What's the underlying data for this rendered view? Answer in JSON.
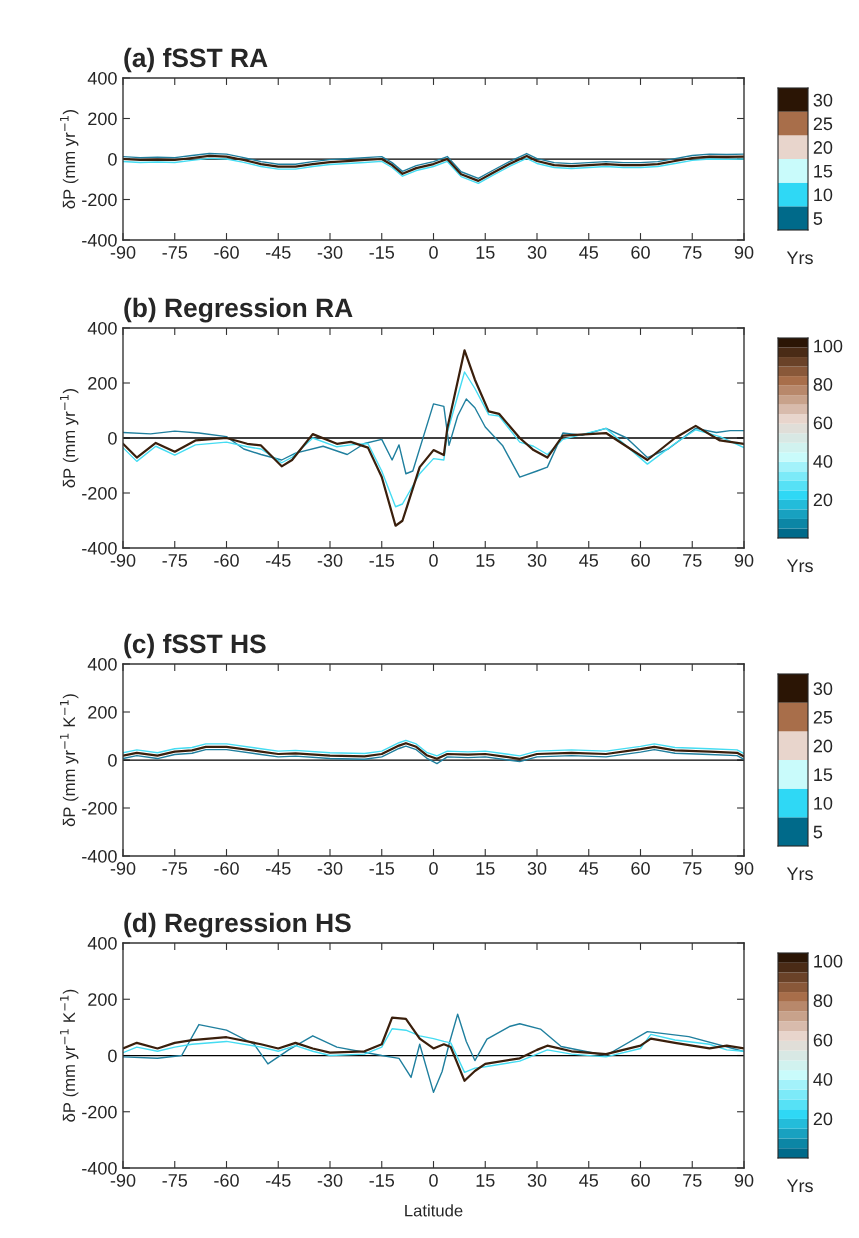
{
  "chart_data": [
    {
      "type": "line",
      "title": "(a) fSST RA",
      "ylabel": "δP (mm yr$^{−1}$)",
      "xlim": [
        -90,
        90
      ],
      "xticks": [
        -90,
        -75,
        -60,
        -45,
        -30,
        -15,
        0,
        15,
        30,
        45,
        60,
        75,
        90
      ],
      "ylim": [
        -400,
        400
      ],
      "yticks": [
        -400,
        -200,
        0,
        200,
        400
      ],
      "grid": false,
      "clabel": "Yrs",
      "clim": [
        2.5,
        32.5
      ],
      "cticks": [
        5,
        10,
        15,
        20,
        25,
        30
      ],
      "ref_lines": [
        {
          "axis": "y",
          "value": 0,
          "color": "#000000"
        }
      ],
      "series": [
        {
          "color": "#1f7f9e",
          "x": [
            -90,
            -85,
            -80,
            -75,
            -70,
            -65,
            -60,
            -55,
            -50,
            -45,
            -40,
            -35,
            -30,
            -25,
            -20,
            -15,
            -12,
            -9,
            -5,
            0,
            4,
            8,
            13,
            17,
            22,
            27,
            30,
            35,
            40,
            45,
            50,
            55,
            60,
            65,
            70,
            75,
            80,
            85,
            90
          ],
          "values": [
            12,
            7,
            9,
            7,
            17,
            27,
            24,
            7,
            -13,
            -26,
            -26,
            -13,
            -3,
            2,
            7,
            12,
            -18,
            -61,
            -33,
            -13,
            12,
            -63,
            -96,
            -58,
            -13,
            27,
            2,
            -18,
            -23,
            -18,
            -13,
            -18,
            -18,
            -13,
            2,
            17,
            24,
            22,
            24
          ]
        },
        {
          "color": "#45dcf2",
          "x": [
            -90,
            -85,
            -80,
            -75,
            -70,
            -65,
            -60,
            -55,
            -50,
            -45,
            -40,
            -35,
            -30,
            -25,
            -20,
            -15,
            -12,
            -9,
            -5,
            0,
            4,
            8,
            13,
            17,
            22,
            27,
            30,
            35,
            40,
            45,
            50,
            55,
            60,
            65,
            70,
            75,
            80,
            85,
            90
          ],
          "values": [
            -12,
            -17,
            -15,
            -17,
            -7,
            3,
            0,
            -17,
            -37,
            -50,
            -50,
            -37,
            -27,
            -22,
            -17,
            -12,
            -42,
            -85,
            -57,
            -37,
            -12,
            -87,
            -120,
            -82,
            -37,
            3,
            -22,
            -42,
            -47,
            -42,
            -37,
            -42,
            -42,
            -37,
            -22,
            -7,
            0,
            -2,
            0
          ]
        },
        {
          "color": "#3a1f0c",
          "x": [
            -90,
            -85,
            -80,
            -75,
            -70,
            -65,
            -60,
            -55,
            -50,
            -45,
            -40,
            -35,
            -30,
            -25,
            -20,
            -15,
            -12,
            -9,
            -5,
            0,
            4,
            8,
            13,
            17,
            22,
            27,
            30,
            35,
            40,
            45,
            50,
            55,
            60,
            65,
            70,
            75,
            80,
            85,
            90
          ],
          "values": [
            0,
            -5,
            -3,
            -5,
            5,
            15,
            12,
            -5,
            -25,
            -38,
            -38,
            -25,
            -15,
            -10,
            -5,
            0,
            -30,
            -73,
            -45,
            -25,
            0,
            -75,
            -108,
            -70,
            -25,
            15,
            -10,
            -30,
            -35,
            -30,
            -25,
            -30,
            -30,
            -25,
            -10,
            5,
            12,
            10,
            12
          ]
        }
      ]
    },
    {
      "type": "line",
      "title": "(b) Regression RA",
      "ylabel": "δP (mm yr$^{−1}$)",
      "xlim": [
        -90,
        90
      ],
      "xticks": [
        -90,
        -75,
        -60,
        -45,
        -30,
        -15,
        0,
        15,
        30,
        45,
        60,
        75,
        90
      ],
      "ylim": [
        -400,
        400
      ],
      "yticks": [
        -400,
        -200,
        0,
        200,
        400
      ],
      "grid": false,
      "clabel": "Yrs",
      "clim": [
        0,
        104
      ],
      "cticks": [
        20,
        40,
        60,
        80,
        100
      ],
      "ref_lines": [
        {
          "axis": "y",
          "value": 0,
          "color": "#000000"
        }
      ],
      "series": [
        {
          "color": "#1f7f9e",
          "x": [
            -90,
            -82,
            -75,
            -68,
            -60,
            -55,
            -50,
            -44,
            -40,
            -32,
            -25,
            -20,
            -15,
            -12,
            -10,
            -8,
            -6,
            0,
            3,
            4.5,
            7,
            9.5,
            12,
            15,
            20,
            25,
            30,
            33,
            37.5,
            43,
            50,
            56,
            62,
            68,
            76,
            82,
            86,
            90
          ],
          "values": [
            20,
            15,
            25,
            18,
            5,
            -40,
            -60,
            -80,
            -55,
            -30,
            -60,
            -20,
            -5,
            -80,
            -25,
            -130,
            -120,
            124,
            115,
            -27,
            80,
            142,
            110,
            40,
            -27,
            -142,
            -120,
            -106,
            18,
            10,
            35,
            0,
            -71,
            -40,
            35,
            20,
            27,
            27
          ]
        },
        {
          "color": "#45dcf2",
          "x": [
            -90,
            -86,
            -80.5,
            -75,
            -69,
            -60,
            -54,
            -50,
            -44,
            -41,
            -35,
            -28,
            -24,
            -19,
            -15,
            -11,
            -9,
            -4,
            0,
            3,
            4,
            9,
            12,
            16,
            19,
            25,
            29,
            33,
            37.5,
            50,
            62,
            70,
            76,
            83,
            90
          ],
          "values": [
            -35,
            -85,
            -30,
            -62,
            -25,
            -15,
            -32,
            -40,
            -90,
            -70,
            0,
            -32,
            -25,
            -20,
            -120,
            -250,
            -240,
            -130,
            -75,
            -80,
            20,
            240,
            180,
            85,
            80,
            -15,
            -30,
            -60,
            -5,
            35,
            -95,
            -20,
            30,
            5,
            -35
          ]
        },
        {
          "color": "#3a1f0c",
          "x": [
            -90,
            -86,
            -80.5,
            -75,
            -69,
            -60,
            -54,
            -50,
            -44,
            -41,
            -35,
            -28,
            -24,
            -19,
            -15,
            -11,
            -9,
            -4,
            0,
            3,
            4,
            9,
            12,
            16,
            19,
            25,
            29,
            33,
            37.5,
            50,
            62,
            70,
            76,
            83,
            90
          ],
          "values": [
            -21,
            -71,
            -18,
            -50,
            -9,
            0,
            -21,
            -27,
            -103,
            -80,
            14,
            -21,
            -14,
            -35,
            -142,
            -319,
            -301,
            -106,
            -44,
            -62,
            35,
            319,
            212,
            97,
            88,
            0,
            -44,
            -71,
            9,
            18,
            -80,
            0,
            44,
            -9,
            -21
          ]
        }
      ]
    },
    {
      "type": "line",
      "title": "(c) fSST HS",
      "ylabel": "δP (mm yr$^{−1}$ K$^{−1}$)",
      "xlim": [
        -90,
        90
      ],
      "xticks": [
        -90,
        -75,
        -60,
        -45,
        -30,
        -15,
        0,
        15,
        30,
        45,
        60,
        75,
        90
      ],
      "ylim": [
        -400,
        400
      ],
      "yticks": [
        -400,
        -200,
        0,
        200,
        400
      ],
      "grid": false,
      "clabel": "Yrs",
      "clim": [
        2.5,
        32.5
      ],
      "cticks": [
        5,
        10,
        15,
        20,
        25,
        30
      ],
      "ref_lines": [
        {
          "axis": "y",
          "value": 0,
          "color": "#000000"
        }
      ],
      "series": [
        {
          "color": "#1f7f9e",
          "x": [
            -90,
            -86,
            -80,
            -75,
            -70,
            -66,
            -60,
            -50,
            -45,
            -40,
            -30,
            -20,
            -15,
            -10,
            -8,
            -5,
            -2,
            1,
            4,
            10,
            15,
            20,
            25,
            30,
            40,
            50,
            60,
            64,
            70,
            80,
            88,
            90
          ],
          "values": [
            6,
            18,
            6,
            23,
            28,
            43,
            43,
            23,
            13,
            16,
            6,
            3,
            13,
            48,
            58,
            43,
            8,
            -15,
            13,
            10,
            13,
            3,
            -7,
            13,
            18,
            13,
            33,
            43,
            28,
            23,
            18,
            3
          ]
        },
        {
          "color": "#45dcf2",
          "x": [
            -90,
            -86,
            -80,
            -75,
            -70,
            -66,
            -60,
            -50,
            -45,
            -40,
            -30,
            -20,
            -15,
            -10,
            -8,
            -5,
            -2,
            1,
            4,
            10,
            15,
            20,
            25,
            30,
            40,
            50,
            60,
            64,
            70,
            80,
            88,
            90
          ],
          "values": [
            30,
            42,
            30,
            47,
            52,
            67,
            67,
            47,
            37,
            40,
            30,
            27,
            37,
            72,
            82,
            67,
            32,
            17,
            37,
            34,
            37,
            27,
            17,
            37,
            42,
            37,
            57,
            67,
            52,
            47,
            42,
            27
          ]
        },
        {
          "color": "#3a1f0c",
          "x": [
            -90,
            -86,
            -80,
            -75,
            -70,
            -66,
            -60,
            -50,
            -45,
            -40,
            -30,
            -20,
            -15,
            -10,
            -8,
            -5,
            -2,
            1,
            4,
            10,
            15,
            20,
            25,
            30,
            40,
            50,
            60,
            64,
            70,
            80,
            88,
            90
          ],
          "values": [
            18,
            30,
            18,
            35,
            40,
            55,
            55,
            35,
            25,
            28,
            18,
            15,
            25,
            60,
            70,
            55,
            20,
            5,
            25,
            22,
            25,
            15,
            5,
            25,
            30,
            25,
            45,
            55,
            40,
            35,
            30,
            15
          ]
        }
      ]
    },
    {
      "type": "line",
      "title": "(d) Regression HS",
      "xlabel": "Latitude",
      "ylabel": "δP (mm yr$^{−1}$ K$^{−1}$)",
      "xlim": [
        -90,
        90
      ],
      "xticks": [
        -90,
        -75,
        -60,
        -45,
        -30,
        -15,
        0,
        15,
        30,
        45,
        60,
        75,
        90
      ],
      "ylim": [
        -400,
        400
      ],
      "yticks": [
        -400,
        -200,
        0,
        200,
        400
      ],
      "grid": false,
      "clabel": "Yrs",
      "clim": [
        0,
        104
      ],
      "cticks": [
        20,
        40,
        60,
        80,
        100
      ],
      "ref_lines": [
        {
          "axis": "y",
          "value": 0,
          "color": "#000000"
        }
      ],
      "series": [
        {
          "color": "#1f7f9e",
          "x": [
            -90,
            -80,
            -73,
            -68,
            -60,
            -52,
            -48,
            -42,
            -35,
            -28,
            -15,
            -10,
            -6.5,
            -4,
            0,
            2.5,
            4.5,
            7,
            9.5,
            12,
            15.5,
            22,
            25,
            31,
            37,
            50,
            62,
            74,
            90
          ],
          "values": [
            -5,
            -10,
            0,
            110,
            90,
            40,
            -30,
            20,
            70,
            30,
            0,
            -10,
            -78,
            40,
            -131,
            -57,
            40,
            147,
            50,
            -18,
            58,
            103,
            113,
            94,
            32,
            0,
            85,
            67,
            14
          ]
        },
        {
          "color": "#45dcf2",
          "x": [
            -90,
            -86,
            -80,
            -75,
            -70,
            -60,
            -50,
            -45,
            -40,
            -35,
            -30,
            -20,
            -15,
            -12,
            -8,
            -4,
            0,
            3,
            5,
            9,
            12,
            15,
            25,
            30,
            33,
            40,
            50,
            60,
            63,
            70,
            80,
            85,
            90
          ],
          "values": [
            10,
            30,
            15,
            30,
            40,
            50,
            30,
            15,
            35,
            15,
            0,
            5,
            30,
            95,
            90,
            70,
            60,
            50,
            45,
            -60,
            -45,
            -40,
            -20,
            5,
            20,
            5,
            -5,
            25,
            75,
            55,
            40,
            20,
            15
          ]
        },
        {
          "color": "#3a1f0c",
          "x": [
            -90,
            -86,
            -80,
            -75,
            -70,
            -60,
            -50,
            -45,
            -40,
            -35,
            -30,
            -20,
            -15,
            -12,
            -8,
            -4,
            0,
            3,
            5,
            9,
            12,
            15,
            25,
            30,
            33,
            40,
            50,
            60,
            63,
            70,
            80,
            85,
            90
          ],
          "values": [
            25,
            45,
            25,
            45,
            55,
            65,
            40,
            25,
            45,
            25,
            10,
            15,
            40,
            135,
            130,
            60,
            25,
            40,
            30,
            -90,
            -55,
            -30,
            -10,
            20,
            35,
            15,
            5,
            35,
            60,
            45,
            25,
            35,
            25
          ]
        }
      ]
    }
  ]
}
